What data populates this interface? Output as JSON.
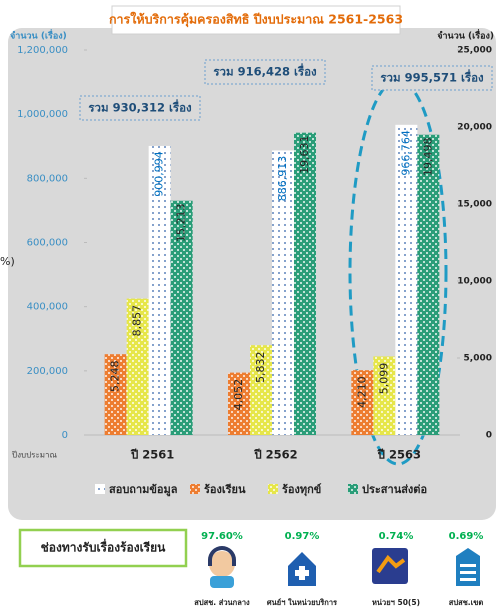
{
  "chart_data": {
    "type": "bar",
    "title": "การให้บริการคุ้มครองสิทธิ ปีงบประมาณ 2561-2563",
    "y_label": "จำนวน (เรื่อง)",
    "y2_label": "จำนวน (เรื่อง)",
    "x_label": "ปีงบประมาณ",
    "categories": [
      "ปี 2561",
      "ปี 2562",
      "ปี 2563"
    ],
    "series": [
      {
        "name": "ร้องเรียน",
        "color": "#ed7d31",
        "axis": "y2",
        "values": [
          5248,
          4052,
          4210
        ],
        "value_labels": [
          "5,248",
          "4,052",
          "4,210"
        ]
      },
      {
        "name": "ร้องทุกข์",
        "color": "#e6e64a",
        "axis": "y2",
        "values": [
          8857,
          5832,
          5099
        ],
        "value_labels": [
          "8,857",
          "5,832",
          "5,099"
        ]
      },
      {
        "name": "สอบถามข้อมูล",
        "color": "#2e5fa8",
        "axis": "y",
        "values": [
          900994,
          886913,
          966764
        ],
        "value_labels": [
          "900,994",
          "886,913",
          "966,764"
        ]
      },
      {
        "name": "ประสานส่งต่อ",
        "color": "#2a9d78",
        "axis": "y2",
        "values": [
          15213,
          19631,
          19498
        ],
        "value_labels": [
          "15,213",
          "19,631",
          "19,498"
        ]
      }
    ],
    "ylim": [
      0,
      1200000
    ],
    "yticks": [
      0,
      {
        "value": 200000,
        "label": "200,000"
      },
      {
        "value": 400000,
        "label": "400,000"
      },
      {
        "value": 600000,
        "label": "600,000"
      },
      {
        "value": 800000,
        "label": "800,000"
      },
      {
        "value": 1000000,
        "label": "1,000,000"
      },
      {
        "value": 1200000,
        "label": "1,200,000"
      }
    ],
    "y2lim": [
      0,
      25000
    ],
    "y2ticks": [
      0,
      {
        "value": 5000,
        "label": "5,000"
      },
      {
        "value": 10000,
        "label": "10,000"
      },
      {
        "value": 15000,
        "label": "15,000"
      },
      {
        "value": 20000,
        "label": "20,000"
      },
      {
        "value": 25000,
        "label": "25,000"
      }
    ],
    "grid": false,
    "legend": "bottom",
    "annotations": [
      "รวม 930,312 เรื่อง",
      "รวม 916,428 เรื่อง",
      "รวม 995,571 เรื่อง"
    ]
  },
  "stray_text": "%)",
  "channels": {
    "title": "ช่องทางรับเรื่องร้องเรียน",
    "items": [
      {
        "percent": "97.60%",
        "label": "สปสช. ส่วนกลาง"
      },
      {
        "percent": "0.97%",
        "label": "ศนย์ฯ ในหน่วยบริการ"
      },
      {
        "percent": "0.74%",
        "label": "หน่วยฯ 50(5)"
      },
      {
        "percent": "0.69%",
        "label": "สปสช.เขต"
      }
    ]
  }
}
